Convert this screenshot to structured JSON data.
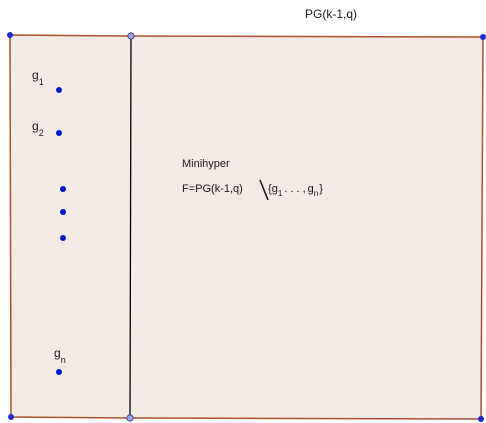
{
  "title": "PG(k-1,q)",
  "region_fill": "#f3e9e5",
  "edge_color": "#a9522c",
  "divider_color": "#000000",
  "corner_dot_color": "#1f2ad6",
  "vertex_fill": "#9aa3df",
  "point_color": "#0018c7",
  "points": {
    "g1": {
      "base": "g",
      "sub": "1"
    },
    "g2": {
      "base": "g",
      "sub": "2"
    },
    "gn": {
      "base": "g",
      "sub": "n"
    }
  },
  "minihyper": {
    "heading": "Minihyper",
    "formula_head": "F=PG(k-1,q)",
    "set_open": "{",
    "g": "g",
    "sub1": "1",
    "dots": ". . . ,",
    "subn": "n",
    "set_close": "}"
  }
}
